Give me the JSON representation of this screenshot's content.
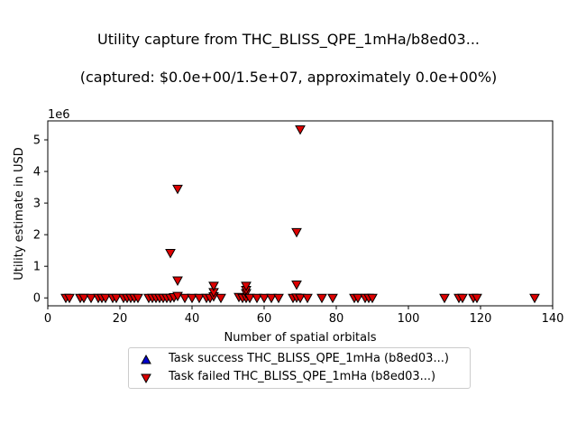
{
  "chart_data": {
    "type": "scatter",
    "title_line1": "Utility capture from THC_BLISS_QPE_1mHa/b8ed03...",
    "title_line2": "(captured: $0.0e+00/1.5e+07, approximately 0.0e+00%)",
    "xlabel": "Number of spatial orbitals",
    "ylabel": "Utility estimate in USD",
    "y_multiplier_label": "1e6",
    "xlim": [
      0,
      140
    ],
    "ylim": [
      -0.25,
      5.6
    ],
    "x_ticks": [
      0,
      20,
      40,
      60,
      80,
      100,
      120,
      140
    ],
    "y_ticks": [
      0,
      1,
      2,
      3,
      4,
      5
    ],
    "grid": false,
    "legend_position": "below",
    "series": [
      {
        "name": "Task success THC_BLISS_QPE_1mHa (b8ed03...)",
        "marker": "triangle-up",
        "color": "#0000cc",
        "points": []
      },
      {
        "name": "Task failed THC_BLISS_QPE_1mHa (b8ed03...)",
        "marker": "triangle-down",
        "color": "#dd0000",
        "points": [
          [
            5,
            0
          ],
          [
            6,
            0
          ],
          [
            9,
            0
          ],
          [
            10,
            0
          ],
          [
            12,
            0
          ],
          [
            14,
            0
          ],
          [
            15,
            0
          ],
          [
            16,
            0
          ],
          [
            18,
            0
          ],
          [
            19,
            0
          ],
          [
            21,
            0
          ],
          [
            22,
            0
          ],
          [
            23,
            0
          ],
          [
            24,
            0
          ],
          [
            25,
            0
          ],
          [
            28,
            0
          ],
          [
            29,
            0
          ],
          [
            30,
            0
          ],
          [
            31,
            0
          ],
          [
            32,
            0
          ],
          [
            33,
            0
          ],
          [
            34,
            0
          ],
          [
            34,
            1.42
          ],
          [
            35,
            0.02
          ],
          [
            36,
            0.06
          ],
          [
            36,
            0.55
          ],
          [
            36,
            3.45
          ],
          [
            38,
            0
          ],
          [
            40,
            0
          ],
          [
            42,
            0
          ],
          [
            44,
            0
          ],
          [
            45,
            0
          ],
          [
            46,
            0.05
          ],
          [
            46,
            0.18
          ],
          [
            46,
            0.38
          ],
          [
            48,
            0
          ],
          [
            53,
            0.03
          ],
          [
            54,
            0
          ],
          [
            55,
            0
          ],
          [
            55,
            0.15
          ],
          [
            55,
            0.25
          ],
          [
            55,
            0.38
          ],
          [
            56,
            0
          ],
          [
            58,
            0
          ],
          [
            60,
            0
          ],
          [
            62,
            0
          ],
          [
            64,
            0
          ],
          [
            68,
            0
          ],
          [
            69,
            0.01
          ],
          [
            69,
            0.42
          ],
          [
            69,
            2.08
          ],
          [
            70,
            0
          ],
          [
            70,
            5.33
          ],
          [
            72,
            0
          ],
          [
            76,
            0
          ],
          [
            79,
            0
          ],
          [
            85,
            0
          ],
          [
            86,
            0
          ],
          [
            88,
            0
          ],
          [
            89,
            0
          ],
          [
            90,
            0
          ],
          [
            110,
            0
          ],
          [
            114,
            0
          ],
          [
            115,
            0
          ],
          [
            118,
            0
          ],
          [
            119,
            0
          ],
          [
            135,
            0
          ]
        ]
      }
    ]
  }
}
